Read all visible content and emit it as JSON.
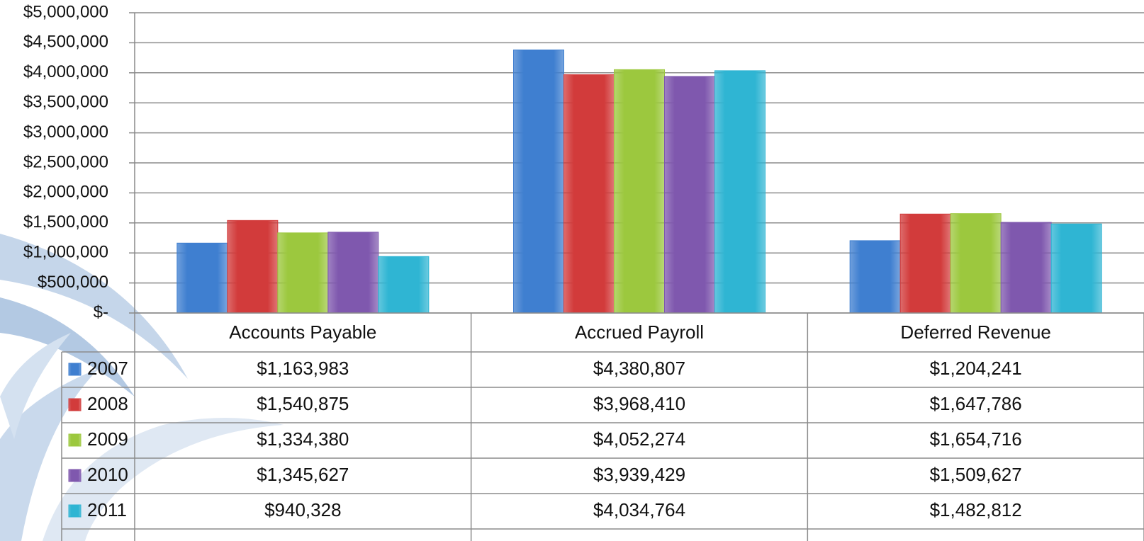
{
  "chart_data": {
    "type": "bar",
    "categories": [
      "Accounts Payable",
      "Accrued Payroll",
      "Deferred Revenue"
    ],
    "series": [
      {
        "name": "2007",
        "color": "#3f7fd0",
        "values": [
          1163983,
          4380807,
          1204241
        ],
        "value_labels": [
          "$1,163,983",
          "$4,380,807",
          "$1,204,241"
        ]
      },
      {
        "name": "2008",
        "color": "#d23b3b",
        "values": [
          1540875,
          3968410,
          1647786
        ],
        "value_labels": [
          "$1,540,875",
          "$3,968,410",
          "$1,647,786"
        ]
      },
      {
        "name": "2009",
        "color": "#9cc83e",
        "values": [
          1334380,
          4052274,
          1654716
        ],
        "value_labels": [
          "$1,334,380",
          "$4,052,274",
          "$1,654,716"
        ]
      },
      {
        "name": "2010",
        "color": "#7f58ae",
        "values": [
          1345627,
          3939429,
          1509627
        ],
        "value_labels": [
          "$1,345,627",
          "$3,939,429",
          "$1,509,627"
        ]
      },
      {
        "name": "2011",
        "color": "#2fb5d3",
        "values": [
          940328,
          4034764,
          1482812
        ],
        "value_labels": [
          "$940,328",
          "$4,034,764",
          "$1,482,812"
        ]
      }
    ],
    "ylim": [
      0,
      5000000
    ],
    "yticks": [
      {
        "value": 0,
        "label": "$-"
      },
      {
        "value": 500000,
        "label": "$500,000"
      },
      {
        "value": 1000000,
        "label": "$1,000,000"
      },
      {
        "value": 1500000,
        "label": "$1,500,000"
      },
      {
        "value": 2000000,
        "label": "$2,000,000"
      },
      {
        "value": 2500000,
        "label": "$2,500,000"
      },
      {
        "value": 3000000,
        "label": "$3,000,000"
      },
      {
        "value": 3500000,
        "label": "$3,500,000"
      },
      {
        "value": 4000000,
        "label": "$4,000,000"
      },
      {
        "value": 4500000,
        "label": "$4,500,000"
      },
      {
        "value": 5000000,
        "label": "$5,000,000"
      }
    ],
    "grid": true
  }
}
